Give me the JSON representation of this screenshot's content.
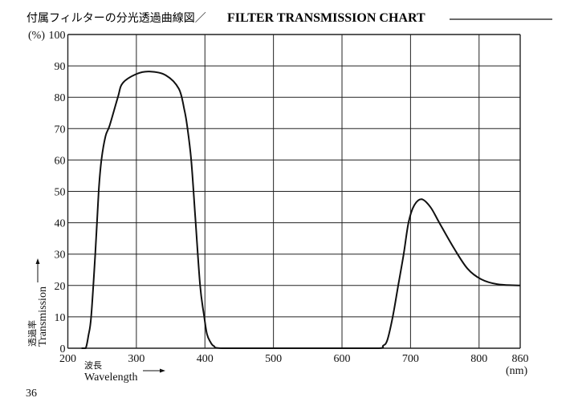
{
  "page_number": "36",
  "chart_data": {
    "type": "line",
    "title_jp": "付属フィルターの分光透過曲線図／",
    "title": "FILTER TRANSMISSION CHART",
    "xlabel": "Wavelength",
    "xlabel_jp": "波長",
    "xunit": "(nm)",
    "ylabel": "Transmission",
    "ylabel_jp": "透過率",
    "yunit": "(%)",
    "xlim": [
      200,
      860
    ],
    "ylim": [
      0,
      100
    ],
    "x_ticks": [
      200,
      300,
      400,
      500,
      600,
      700,
      800,
      860
    ],
    "y_ticks": [
      0,
      10,
      20,
      30,
      40,
      50,
      60,
      70,
      80,
      90,
      100
    ],
    "grid": true,
    "series": [
      {
        "name": "Filter transmission",
        "color": "#111111",
        "points": [
          [
            220,
            0
          ],
          [
            226,
            0
          ],
          [
            230,
            4
          ],
          [
            234,
            10
          ],
          [
            240,
            30
          ],
          [
            245,
            50
          ],
          [
            249,
            60
          ],
          [
            255,
            67.6
          ],
          [
            261,
            71
          ],
          [
            273,
            80
          ],
          [
            280,
            84.5
          ],
          [
            300,
            87.4
          ],
          [
            319,
            88.2
          ],
          [
            343,
            87
          ],
          [
            362,
            82.7
          ],
          [
            370,
            76
          ],
          [
            374,
            71
          ],
          [
            380,
            60
          ],
          [
            386,
            41.6
          ],
          [
            393,
            20
          ],
          [
            399,
            10
          ],
          [
            403,
            4.5
          ],
          [
            408,
            2
          ],
          [
            413,
            0.7
          ],
          [
            425,
            0
          ],
          [
            500,
            0
          ],
          [
            600,
            0
          ],
          [
            654,
            0
          ],
          [
            660,
            0.8
          ],
          [
            666,
            2.5
          ],
          [
            674,
            10
          ],
          [
            682,
            20
          ],
          [
            690,
            30
          ],
          [
            697,
            40
          ],
          [
            705,
            45.4
          ],
          [
            716,
            47.5
          ],
          [
            729,
            45
          ],
          [
            742,
            40
          ],
          [
            763,
            32
          ],
          [
            783,
            25.4
          ],
          [
            803,
            22
          ],
          [
            827,
            20.4
          ],
          [
            860,
            20
          ]
        ]
      }
    ]
  }
}
